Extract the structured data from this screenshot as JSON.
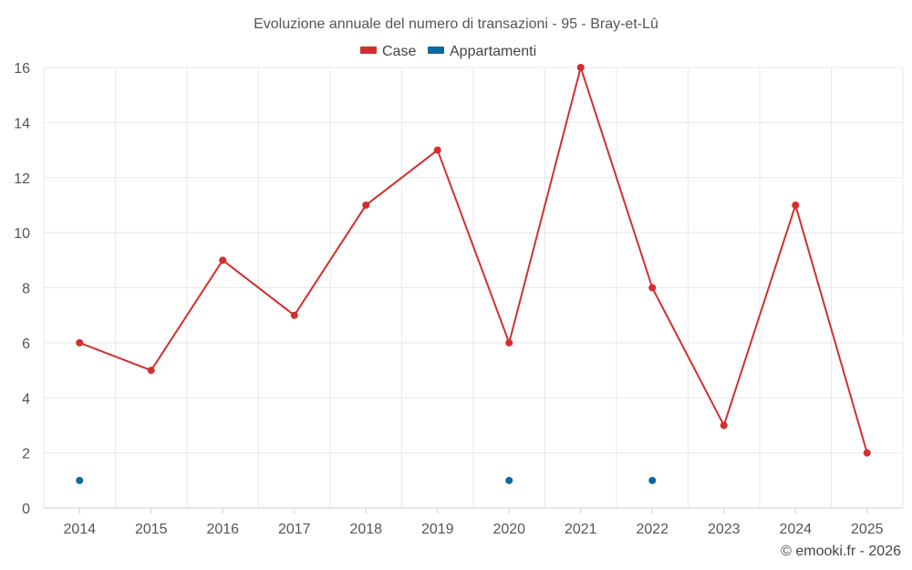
{
  "chart_data": {
    "type": "line",
    "title": "Evoluzione annuale del numero di transazioni - 95 - Bray-et-Lû",
    "x": [
      "2014",
      "2015",
      "2016",
      "2017",
      "2018",
      "2019",
      "2020",
      "2021",
      "2022",
      "2023",
      "2024",
      "2025"
    ],
    "yticks": [
      "0",
      "2",
      "4",
      "6",
      "8",
      "10",
      "12",
      "14",
      "16"
    ],
    "ylim": [
      0,
      16
    ],
    "grid": true,
    "legend_position": "top-center",
    "series": [
      {
        "name": "Case",
        "color": "#d32f2f",
        "style": "line-markers",
        "values": [
          6,
          5,
          9,
          7,
          11,
          13,
          6,
          16,
          8,
          3,
          11,
          2
        ]
      },
      {
        "name": "Appartamenti",
        "color": "#0b6aa2",
        "style": "markers",
        "values": [
          1,
          null,
          null,
          null,
          null,
          null,
          1,
          null,
          1,
          null,
          null,
          null
        ]
      }
    ],
    "credit": "© emooki.fr - 2026"
  }
}
